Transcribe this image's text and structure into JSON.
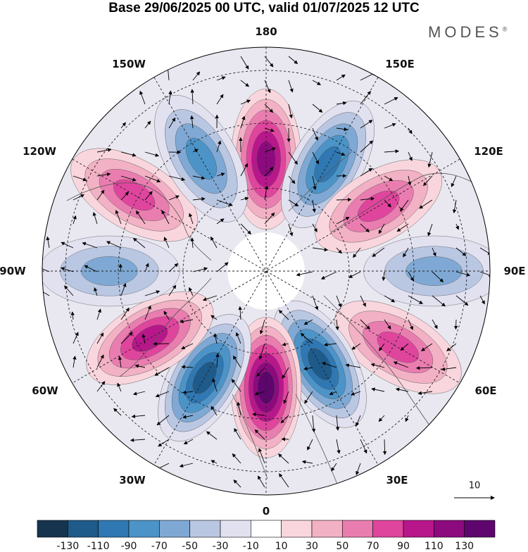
{
  "header": {
    "title": "Base 29/06/2025 00 UTC, valid 01/07/2025 12 UTC",
    "brand": "MODES",
    "brand_mark": "®"
  },
  "map_labels": {
    "n180": "180",
    "n0": "0",
    "e150": "150E",
    "e120": "120E",
    "e90": "90E",
    "e60": "60E",
    "e30": "30E",
    "w150": "150W",
    "w120": "120W",
    "w90": "90W",
    "w60": "60W",
    "w30": "30W"
  },
  "vector_reference": {
    "label": "10"
  },
  "colorbar": {
    "ticks": [
      "-130",
      "-110",
      "-90",
      "-70",
      "-50",
      "-30",
      "-10",
      "10",
      "30",
      "50",
      "70",
      "90",
      "110",
      "130"
    ],
    "colors": [
      "#17344f",
      "#1e5a8a",
      "#2f78b3",
      "#4c94c8",
      "#7fa9d4",
      "#b9c7e3",
      "#e2e1f0",
      "#ffffff",
      "#f9d6dd",
      "#f2b1c4",
      "#ea7db0",
      "#e0459d",
      "#b8178b",
      "#8c0a7e",
      "#5e056e"
    ]
  },
  "anomalies": [
    {
      "lon": 180,
      "r": 0.5,
      "value": 110,
      "sign": "positive"
    },
    {
      "lon": 150,
      "r": 0.55,
      "value": -90,
      "sign": "negative"
    },
    {
      "lon": 120,
      "r": 0.58,
      "value": 70,
      "sign": "positive"
    },
    {
      "lon": 90,
      "r": 0.75,
      "value": -50,
      "sign": "negative"
    },
    {
      "lon": 60,
      "r": 0.68,
      "value": 70,
      "sign": "positive"
    },
    {
      "lon": 30,
      "r": 0.48,
      "value": -110,
      "sign": "negative"
    },
    {
      "lon": 0,
      "r": 0.52,
      "value": 130,
      "sign": "positive"
    },
    {
      "lon": -30,
      "r": 0.55,
      "value": -110,
      "sign": "negative"
    },
    {
      "lon": -60,
      "r": 0.6,
      "value": 90,
      "sign": "positive"
    },
    {
      "lon": -90,
      "r": 0.7,
      "value": -50,
      "sign": "negative"
    },
    {
      "lon": -120,
      "r": 0.68,
      "value": 70,
      "sign": "positive"
    },
    {
      "lon": -150,
      "r": 0.58,
      "value": -70,
      "sign": "negative"
    }
  ]
}
